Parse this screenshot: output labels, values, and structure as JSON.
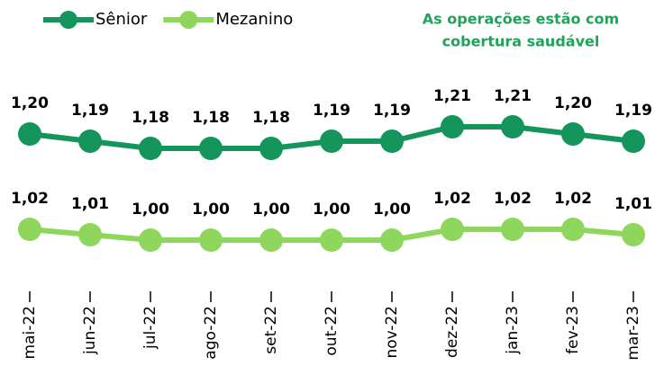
{
  "chart_data": {
    "type": "line",
    "annotation": [
      "As operações estão com",
      "cobertura saudável"
    ],
    "annotation_color": "#1ea35a",
    "categories": [
      "mai-22",
      "jun-22",
      "jul-22",
      "ago-22",
      "set-22",
      "out-22",
      "nov-22",
      "dez-22",
      "jan-23",
      "fev-23",
      "mar-23"
    ],
    "ylim": [
      1.0,
      1.3
    ],
    "y2lim": [
      0.93,
      1.33
    ],
    "series": [
      {
        "name": "Sênior",
        "color": "#13955c",
        "values": [
          1.2,
          1.19,
          1.18,
          1.18,
          1.18,
          1.19,
          1.19,
          1.21,
          1.21,
          1.2,
          1.19
        ],
        "value_labels": [
          "1,20",
          "1,19",
          "1,18",
          "1,18",
          "1,18",
          "1,19",
          "1,19",
          "1,21",
          "1,21",
          "1,20",
          "1,19"
        ]
      },
      {
        "name": "Mezanino",
        "color": "#8fd65c",
        "axis": "y2",
        "values": [
          1.02,
          1.01,
          1.0,
          1.0,
          1.0,
          1.0,
          1.0,
          1.02,
          1.02,
          1.02,
          1.01
        ],
        "value_labels": [
          "1,02",
          "1,01",
          "1,00",
          "1,00",
          "1,00",
          "1,00",
          "1,00",
          "1,02",
          "1,02",
          "1,02",
          "1,01"
        ]
      }
    ]
  }
}
